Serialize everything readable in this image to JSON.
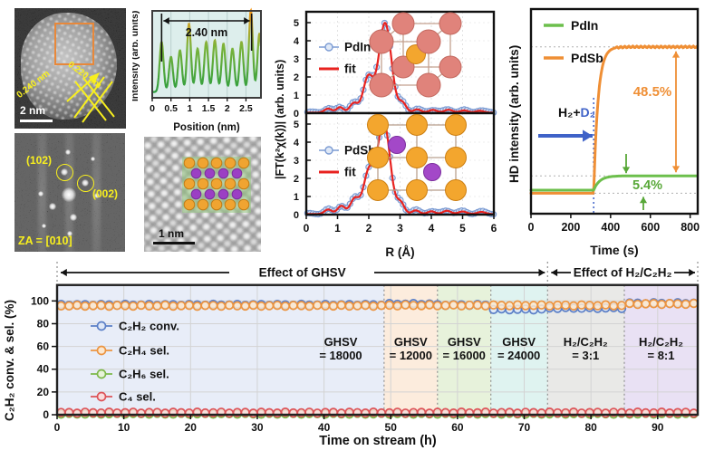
{
  "panels": {
    "tem": {
      "scale_bar": "2 nm",
      "d_label_1": "0.240 nm",
      "d_label_2": "0.220 nm",
      "box_color": "#e8883a",
      "annotation_color": "#f8ef1e"
    },
    "fft": {
      "spot_1": "(102)",
      "spot_2": "(002)",
      "zone_axis": "ZA = [010]",
      "annotation_color": "#f8ef1e"
    },
    "hrtem": {
      "scale_bar": "1 nm",
      "overlay": {
        "bg": "rgba(150,200,130,0.55)",
        "atom_orange": "#f0a431",
        "atom_purple": "#9b3fc4",
        "rows": [
          "o",
          "p",
          "o",
          "p",
          "o"
        ]
      }
    }
  },
  "chart_data": [
    {
      "id": "profile",
      "type": "line",
      "title": "",
      "xlabel": "Position (nm)",
      "ylabel": "Intensity (arb. units)",
      "xlim": [
        0,
        2.9
      ],
      "xticks": [
        0,
        0.5,
        1,
        1.5,
        2,
        2.5
      ],
      "annotation": {
        "label": "2.40 nm",
        "x1": 0.25,
        "x2": 2.65
      },
      "peaks": [
        {
          "x": 0.25,
          "h": 0.6
        },
        {
          "x": 0.5,
          "h": 0.42
        },
        {
          "x": 0.74,
          "h": 0.5
        },
        {
          "x": 0.98,
          "h": 0.82
        },
        {
          "x": 1.21,
          "h": 0.52
        },
        {
          "x": 1.44,
          "h": 0.6
        },
        {
          "x": 1.67,
          "h": 0.62
        },
        {
          "x": 1.9,
          "h": 0.58
        },
        {
          "x": 2.14,
          "h": 0.52
        },
        {
          "x": 2.38,
          "h": 0.6
        },
        {
          "x": 2.63,
          "h": 0.98
        },
        {
          "x": 2.86,
          "h": 0.7
        }
      ],
      "colors": {
        "high": "#f59a1d",
        "mid": "#7ab33a",
        "low": "#2e9e3e",
        "bg": "#ddeeec",
        "grid": "#b9cfcd"
      }
    },
    {
      "id": "exafs",
      "type": "line-2panel",
      "xlabel": "R (Å)",
      "ylabel": "|FT(k²χ(k))| (arb. units)",
      "xlim": [
        0,
        6
      ],
      "ylim": [
        0,
        5.6
      ],
      "xticks": [
        0,
        1,
        2,
        3,
        4,
        5,
        6
      ],
      "yticks": [
        0,
        1,
        2,
        3,
        4,
        5
      ],
      "colors": {
        "data": "#7b9bd3",
        "data_fill": "#dfe8f6",
        "fit": "#e8221f"
      },
      "panels": [
        {
          "name": "PdIn",
          "fit_label": "fit",
          "peaks": [
            [
              0.7,
              0.22,
              0.12
            ],
            [
              1.08,
              0.3,
              0.11
            ],
            [
              1.52,
              0.52,
              0.13
            ],
            [
              1.98,
              1.95,
              0.16
            ],
            [
              2.52,
              4.95,
              0.2
            ],
            [
              3.08,
              0.52,
              0.12
            ],
            [
              3.55,
              0.18,
              0.12
            ],
            [
              4.05,
              0.15,
              0.13
            ],
            [
              4.55,
              0.16,
              0.13
            ],
            [
              5.05,
              0.12,
              0.13
            ],
            [
              5.55,
              0.1,
              0.13
            ]
          ],
          "inset": {
            "corner": "#e0837b",
            "corner_stroke": "#c3685e",
            "center": "#f3a62e",
            "center_stroke": "#cc7f12",
            "bond": "#c4a08f"
          }
        },
        {
          "name": "PdSb",
          "fit_label": "fit",
          "peaks": [
            [
              0.7,
              0.25,
              0.12
            ],
            [
              1.12,
              0.45,
              0.12
            ],
            [
              1.55,
              0.85,
              0.14
            ],
            [
              2.0,
              2.3,
              0.17
            ],
            [
              2.48,
              5.05,
              0.2
            ],
            [
              3.02,
              0.6,
              0.12
            ],
            [
              3.5,
              0.2,
              0.12
            ],
            [
              4.0,
              0.15,
              0.12
            ],
            [
              4.5,
              0.18,
              0.13
            ],
            [
              5.0,
              0.14,
              0.13
            ],
            [
              5.6,
              0.12,
              0.13
            ]
          ],
          "inset": {
            "main": "#f3a62e",
            "main_stroke": "#cc7f12",
            "minor": "#a348c8",
            "minor_stroke": "#7c2f9e",
            "bond": "#b9a08f"
          }
        }
      ]
    },
    {
      "id": "hd",
      "type": "line",
      "xlabel": "Time (s)",
      "ylabel": "HD intensity (arb. units)",
      "xlim": [
        0,
        838
      ],
      "xticks": [
        0,
        200,
        400,
        600,
        800
      ],
      "onset": 315,
      "series": [
        {
          "name": "PdSb",
          "color": "#ef8f35",
          "base": 0.1,
          "plateau": 0.815,
          "tau": 22
        },
        {
          "name": "PdIn",
          "color": "#6cbf4c",
          "base": 0.115,
          "plateau": 0.185,
          "tau": 30
        }
      ],
      "legend_order": [
        "PdIn",
        "PdSb"
      ],
      "annotations": {
        "gas_h2": "H₂+",
        "gas_d2": "D₂",
        "gas_color": "#3f62c8",
        "pct_big": "48.5%",
        "pct_big_color": "#ef8f35",
        "pct_small": "5.4%",
        "pct_small_color": "#58a838"
      }
    },
    {
      "id": "stream",
      "type": "scatter",
      "xlabel": "Time on stream (h)",
      "ylabel": "C₂H₂ conv. & sel.  (%)",
      "xlim": [
        0,
        96
      ],
      "ylim": [
        0,
        114
      ],
      "xticks": [
        0,
        10,
        20,
        30,
        40,
        50,
        60,
        70,
        80,
        90
      ],
      "yticks": [
        0,
        20,
        40,
        60,
        80,
        100
      ],
      "headers": [
        {
          "label": "Effect of GHSV",
          "from": 0,
          "to": 73.5
        },
        {
          "label": "Effect of H₂/C₂H₂",
          "from": 73.5,
          "to": 96
        }
      ],
      "regions": [
        {
          "from": 0,
          "to": 49,
          "bg": "#e8edf8",
          "label": [
            "GHSV",
            "= 18000"
          ],
          "label_at": 42.5
        },
        {
          "from": 49,
          "to": 57,
          "bg": "#fcecdd",
          "label": [
            "GHSV",
            "= 12000"
          ],
          "label_at": 53
        },
        {
          "from": 57,
          "to": 65,
          "bg": "#e7f2db",
          "label": [
            "GHSV",
            "= 16000"
          ],
          "label_at": 61
        },
        {
          "from": 65,
          "to": 73.5,
          "bg": "#dff3f0",
          "label": [
            "GHSV",
            "= 24000"
          ],
          "label_at": 69.2
        },
        {
          "from": 73.5,
          "to": 85,
          "bg": "#e9e9e7",
          "label": [
            "H₂/C₂H₂",
            "= 3:1"
          ],
          "label_at": 79.2
        },
        {
          "from": 85,
          "to": 96,
          "bg": "#e9e1f4",
          "label": [
            "H₂/C₂H₂",
            "= 8:1"
          ],
          "label_at": 90.5
        }
      ],
      "series": [
        {
          "name": "C₂H₆ sel.",
          "color": "#7db84a",
          "fill": "#e8f3da",
          "levels": [
            [
              0,
              96,
              0.8
            ]
          ]
        },
        {
          "name": "C₄ sel.",
          "color": "#dd5257",
          "fill": "#f9dcdc",
          "levels": [
            [
              0,
              96,
              1.8
            ]
          ]
        },
        {
          "name": "C₂H₂ conv.",
          "color": "#5b7fc7",
          "fill": "#dfe8f7",
          "levels": [
            [
              0,
              49,
              96.6
            ],
            [
              49,
              57,
              97.3
            ],
            [
              57,
              65,
              96.5
            ],
            [
              65,
              73.5,
              92.6
            ],
            [
              73.5,
              85,
              93.8
            ],
            [
              85,
              96,
              98.0
            ]
          ]
        },
        {
          "name": "C₂H₄ sel.",
          "color": "#ec9440",
          "fill": "#fbe7cf",
          "levels": [
            [
              0,
              49,
              95.8
            ],
            [
              49,
              85,
              96.1
            ],
            [
              85,
              96,
              97.4
            ]
          ]
        }
      ],
      "legend_order": [
        "C₂H₂ conv.",
        "C₂H₄ sel.",
        "C₂H₆ sel.",
        "C₄ sel."
      ]
    }
  ]
}
